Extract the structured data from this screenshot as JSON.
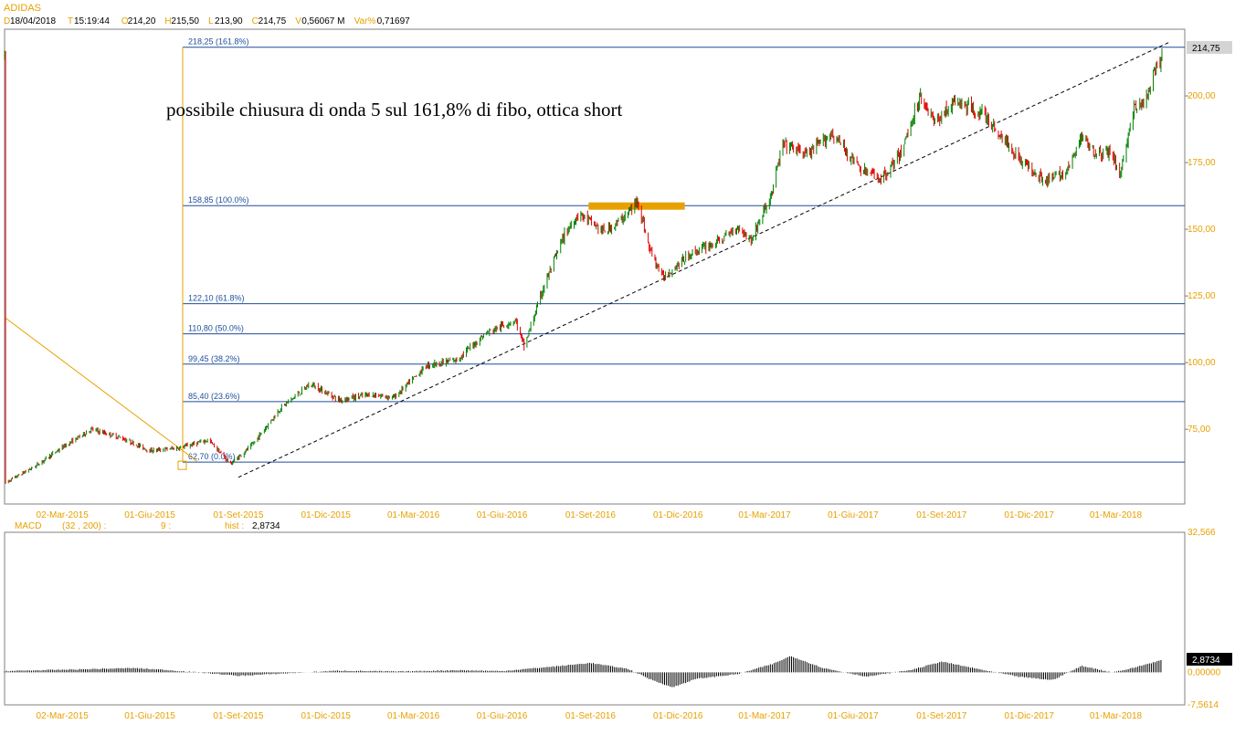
{
  "header": {
    "symbol": "ADIDAS",
    "fields": [
      {
        "label": "D",
        "value": "18/04/2018"
      },
      {
        "label": "T",
        "value": "15:19:44"
      },
      {
        "label": "O",
        "value": "214,20"
      },
      {
        "label": "H",
        "value": "215,50"
      },
      {
        "label": "L",
        "value": "213,90"
      },
      {
        "label": "C",
        "value": "214,75"
      },
      {
        "label": "V",
        "value": "0,56067 M"
      },
      {
        "label": "Var%",
        "value": "0,71697"
      }
    ]
  },
  "annotation": "possibile chiusura di onda 5 sul 161,8% di fibo, ottica short",
  "colors": {
    "accent_orange": "#E8A000",
    "fibo_blue": "#1F4E9A",
    "candle_up": "#008000",
    "candle_down": "#E00000",
    "price_tag_bg": "#D4D4D4",
    "macd_tag_bg": "#000000"
  },
  "price_panel": {
    "last_price_tag": "214,75",
    "y_ticks": [
      "200,00",
      "175,00",
      "150,00",
      "125,00",
      "100,00",
      "75,00"
    ],
    "fibo_levels": [
      {
        "price": 218.25,
        "label": "218,25 (161.8%)"
      },
      {
        "price": 158.85,
        "label": "158,85 (100.0%)"
      },
      {
        "price": 122.1,
        "label": "122,10 (61.8%)"
      },
      {
        "price": 110.8,
        "label": "110,80 (50.0%)"
      },
      {
        "price": 99.45,
        "label": "99,45 (38.2%)"
      },
      {
        "price": 85.4,
        "label": "85,40 (23.6%)"
      },
      {
        "price": 62.7,
        "label": "62,70 (0.0%)"
      }
    ],
    "x_ticks": [
      "02-Mar-2015",
      "01-Giu-2015",
      "01-Set-2015",
      "01-Dic-2015",
      "01-Mar-2016",
      "01-Giu-2016",
      "01-Set-2016",
      "01-Dic-2016",
      "01-Mar-2017",
      "01-Giu-2017",
      "01-Set-2017",
      "01-Dic-2017",
      "01-Mar-2018"
    ]
  },
  "macd_panel": {
    "label": "MACD",
    "params": "(32 , 200) :",
    "signal": "9 :",
    "hist_label": "hist :",
    "hist_value": "2,8734",
    "value_tag": "2,8734",
    "y_ticks": [
      "32,566",
      "0,00000",
      "-7,5614"
    ],
    "x_ticks": [
      "02-Mar-2015",
      "01-Giu-2015",
      "01-Set-2015",
      "01-Dic-2015",
      "01-Mar-2016",
      "01-Giu-2016",
      "01-Set-2016",
      "01-Dic-2016",
      "01-Mar-2017",
      "01-Giu-2017",
      "01-Set-2017",
      "01-Dic-2017",
      "01-Mar-2018"
    ]
  },
  "chart_data": [
    {
      "type": "candlestick",
      "title": "ADIDAS",
      "xlabel": "",
      "ylabel": "",
      "ylim": [
        47,
        225
      ],
      "x_range": [
        "2015-01-01",
        "2018-04-18"
      ],
      "points": [
        [
          "2015-01-02",
          55
        ],
        [
          "2015-02-01",
          61
        ],
        [
          "2015-03-01",
          68
        ],
        [
          "2015-04-01",
          75
        ],
        [
          "2015-05-01",
          72
        ],
        [
          "2015-06-01",
          67
        ],
        [
          "2015-07-01",
          68
        ],
        [
          "2015-08-01",
          71
        ],
        [
          "2015-08-24",
          62
        ],
        [
          "2015-09-15",
          69
        ],
        [
          "2015-10-15",
          83
        ],
        [
          "2015-11-15",
          92
        ],
        [
          "2015-12-15",
          86
        ],
        [
          "2016-01-15",
          88
        ],
        [
          "2016-02-10",
          87
        ],
        [
          "2016-03-15",
          99
        ],
        [
          "2016-04-15",
          101
        ],
        [
          "2016-05-15",
          111
        ],
        [
          "2016-06-15",
          116
        ],
        [
          "2016-06-24",
          106
        ],
        [
          "2016-07-15",
          129
        ],
        [
          "2016-08-05",
          148
        ],
        [
          "2016-08-20",
          156
        ],
        [
          "2016-09-15",
          149
        ],
        [
          "2016-10-01",
          153
        ],
        [
          "2016-10-15",
          158
        ],
        [
          "2016-10-20",
          161
        ],
        [
          "2016-11-01",
          143
        ],
        [
          "2016-11-15",
          132
        ],
        [
          "2016-12-15",
          141
        ],
        [
          "2017-01-15",
          146
        ],
        [
          "2017-02-01",
          151
        ],
        [
          "2017-02-15",
          146
        ],
        [
          "2017-03-08",
          163
        ],
        [
          "2017-03-20",
          182
        ],
        [
          "2017-04-15",
          178
        ],
        [
          "2017-05-10",
          186
        ],
        [
          "2017-06-10",
          172
        ],
        [
          "2017-07-01",
          169
        ],
        [
          "2017-07-20",
          178
        ],
        [
          "2017-08-10",
          200
        ],
        [
          "2017-08-25",
          190
        ],
        [
          "2017-09-15",
          198
        ],
        [
          "2017-10-15",
          193
        ],
        [
          "2017-11-01",
          185
        ],
        [
          "2017-11-25",
          175
        ],
        [
          "2017-12-20",
          168
        ],
        [
          "2018-01-10",
          172
        ],
        [
          "2018-01-25",
          185
        ],
        [
          "2018-02-10",
          178
        ],
        [
          "2018-02-25",
          179
        ],
        [
          "2018-03-05",
          170
        ],
        [
          "2018-03-20",
          195
        ],
        [
          "2018-04-01",
          198
        ],
        [
          "2018-04-10",
          208
        ],
        [
          "2018-04-18",
          214.75
        ]
      ],
      "fib_levels": [
        62.7,
        85.4,
        99.45,
        110.8,
        122.1,
        158.85,
        218.25
      ],
      "trendline": {
        "from": [
          "2015-09-01",
          57
        ],
        "to": [
          "2018-04-25",
          220
        ]
      },
      "resistance_zone": {
        "from": "2016-08-30",
        "to": "2016-12-08",
        "price": 158.7
      },
      "orange_line": {
        "from": [
          "2015-01-01",
          117
        ],
        "to": [
          "2015-07-20",
          63
        ]
      }
    },
    {
      "type": "bar",
      "title": "MACD (32 , 200) : 9",
      "ylim": [
        -7.5614,
        32.566
      ],
      "legend": "hist : 2,8734",
      "points": [
        [
          "2015-01-01",
          0.3
        ],
        [
          "2015-03-01",
          0.6
        ],
        [
          "2015-05-15",
          1.0
        ],
        [
          "2015-06-15",
          0.6
        ],
        [
          "2015-08-01",
          -0.2
        ],
        [
          "2015-09-01",
          -0.8
        ],
        [
          "2015-10-15",
          -0.3
        ],
        [
          "2015-12-15",
          0.4
        ],
        [
          "2016-02-15",
          0.2
        ],
        [
          "2016-04-15",
          0.5
        ],
        [
          "2016-06-01",
          0.3
        ],
        [
          "2016-08-01",
          1.5
        ],
        [
          "2016-09-01",
          2.2
        ],
        [
          "2016-10-10",
          0.8
        ],
        [
          "2016-11-01",
          -1.5
        ],
        [
          "2016-11-25",
          -3.5
        ],
        [
          "2016-12-20",
          -1.5
        ],
        [
          "2017-02-01",
          -0.4
        ],
        [
          "2017-03-10",
          2.0
        ],
        [
          "2017-03-28",
          3.8
        ],
        [
          "2017-05-01",
          1.0
        ],
        [
          "2017-06-15",
          -1.0
        ],
        [
          "2017-08-01",
          0.6
        ],
        [
          "2017-09-01",
          2.5
        ],
        [
          "2017-10-15",
          0.5
        ],
        [
          "2017-11-20",
          -1.0
        ],
        [
          "2017-12-25",
          -1.8
        ],
        [
          "2018-01-25",
          1.5
        ],
        [
          "2018-02-25",
          0.0
        ],
        [
          "2018-03-15",
          0.8
        ],
        [
          "2018-04-18",
          2.87
        ]
      ]
    }
  ]
}
